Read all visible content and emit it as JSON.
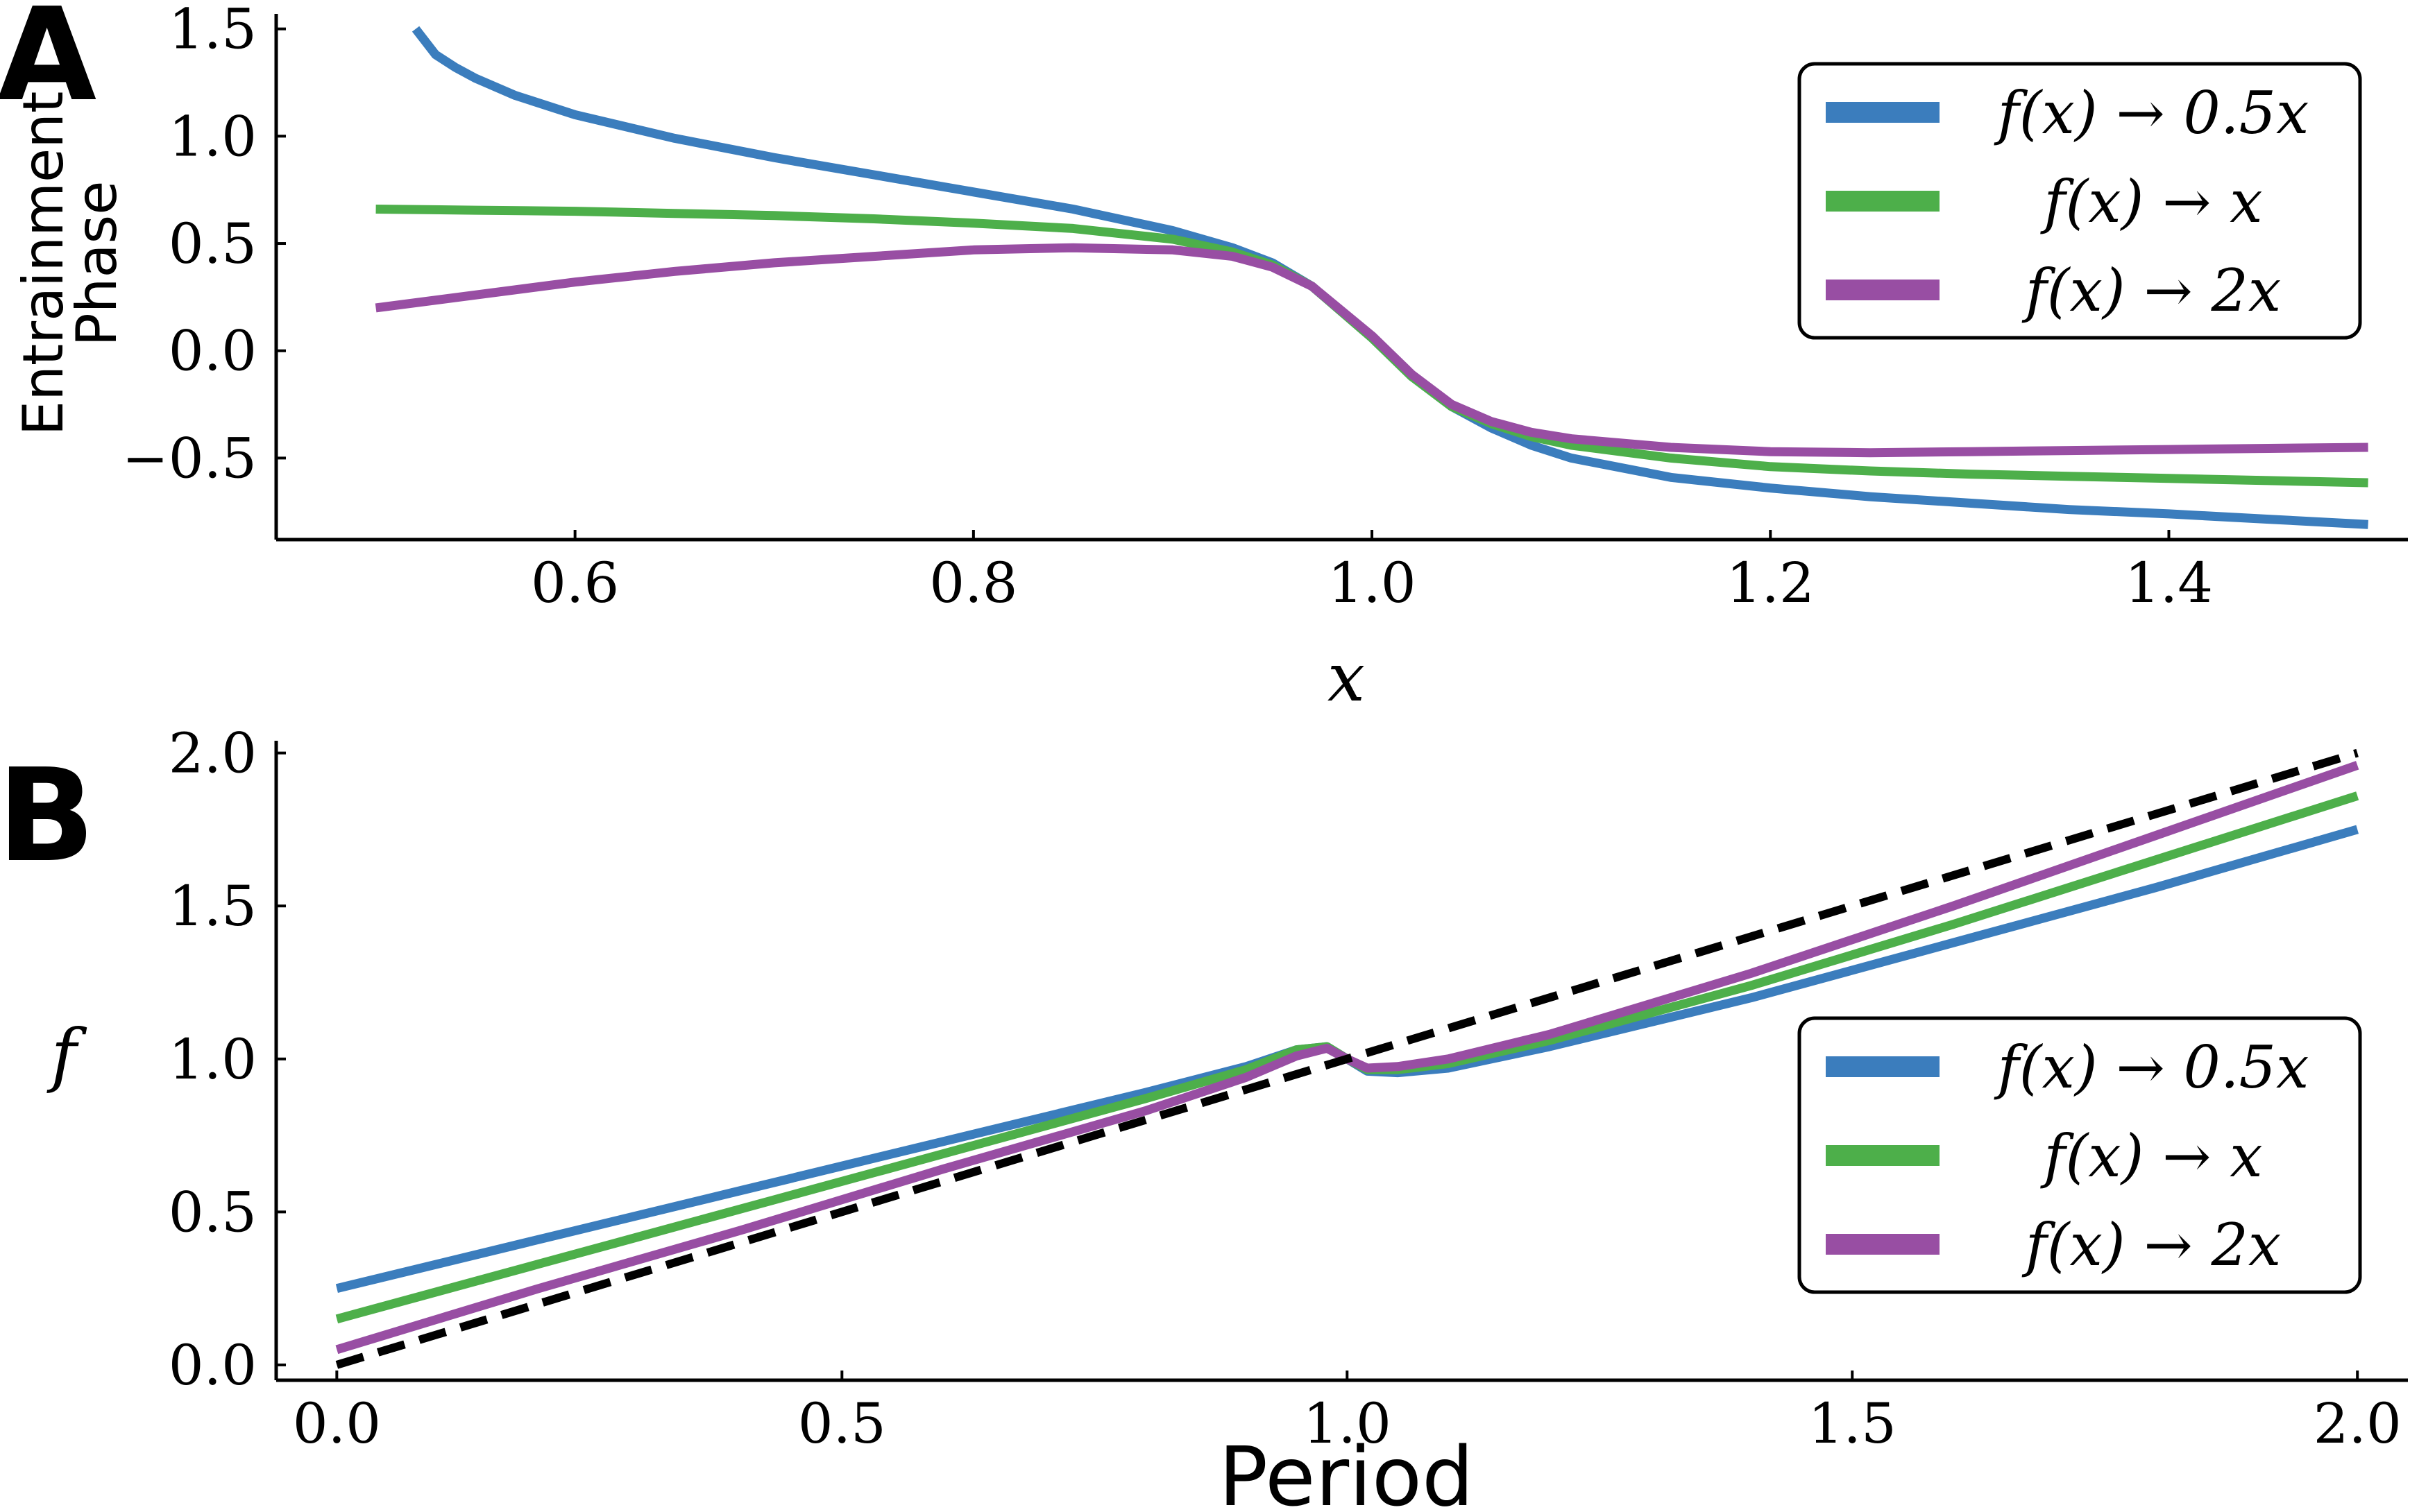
{
  "chart_data": [
    {
      "panel": "A",
      "type": "line",
      "xlabel": "x",
      "ylabel": [
        "Entrainment",
        "Phase"
      ],
      "xlim": [
        0.45,
        1.52
      ],
      "ylim": [
        -0.88,
        1.57
      ],
      "xticks": [
        0.6,
        0.8,
        1.0,
        1.2,
        1.4
      ],
      "xtick_labels": [
        "0.6",
        "0.8",
        "1.0",
        "1.2",
        "1.4"
      ],
      "yticks": [
        1.5,
        1.0,
        0.5,
        0.0,
        -0.5
      ],
      "ytick_labels": [
        "1.5",
        "1.0",
        "0.5",
        "0.0",
        "−0.5"
      ],
      "grid": false,
      "legend_position": "top-right",
      "series": [
        {
          "name": "f(x) → 0.5x",
          "color": "#3b7dbd",
          "x": [
            0.52,
            0.53,
            0.54,
            0.55,
            0.57,
            0.6,
            0.65,
            0.7,
            0.75,
            0.8,
            0.85,
            0.9,
            0.93,
            0.95,
            0.97,
            1.0,
            1.02,
            1.04,
            1.06,
            1.08,
            1.1,
            1.15,
            1.2,
            1.25,
            1.3,
            1.35,
            1.4,
            1.45,
            1.5
          ],
          "y": [
            1.5,
            1.38,
            1.32,
            1.27,
            1.19,
            1.1,
            0.99,
            0.9,
            0.82,
            0.74,
            0.66,
            0.56,
            0.48,
            0.41,
            0.3,
            0.06,
            -0.12,
            -0.26,
            -0.36,
            -0.44,
            -0.5,
            -0.59,
            -0.64,
            -0.68,
            -0.71,
            -0.74,
            -0.76,
            -0.785,
            -0.81
          ]
        },
        {
          "name": "f(x) → x",
          "color": "#4daf4a",
          "x": [
            0.5,
            0.55,
            0.6,
            0.65,
            0.7,
            0.75,
            0.8,
            0.85,
            0.9,
            0.93,
            0.95,
            0.97,
            1.0,
            1.02,
            1.04,
            1.06,
            1.08,
            1.1,
            1.15,
            1.2,
            1.25,
            1.3,
            1.35,
            1.4,
            1.45,
            1.5
          ],
          "y": [
            0.66,
            0.655,
            0.65,
            0.64,
            0.63,
            0.615,
            0.595,
            0.57,
            0.52,
            0.46,
            0.4,
            0.3,
            0.06,
            -0.12,
            -0.26,
            -0.34,
            -0.4,
            -0.44,
            -0.5,
            -0.54,
            -0.56,
            -0.575,
            -0.585,
            -0.595,
            -0.605,
            -0.615
          ]
        },
        {
          "name": "f(x) → 2x",
          "color": "#984ea3",
          "x": [
            0.5,
            0.55,
            0.6,
            0.65,
            0.7,
            0.75,
            0.8,
            0.85,
            0.9,
            0.93,
            0.95,
            0.97,
            1.0,
            1.02,
            1.04,
            1.06,
            1.08,
            1.1,
            1.15,
            1.2,
            1.25,
            1.3,
            1.35,
            1.4,
            1.45,
            1.5
          ],
          "y": [
            0.2,
            0.26,
            0.32,
            0.37,
            0.41,
            0.44,
            0.47,
            0.48,
            0.47,
            0.44,
            0.39,
            0.3,
            0.07,
            -0.11,
            -0.25,
            -0.33,
            -0.38,
            -0.41,
            -0.45,
            -0.47,
            -0.475,
            -0.47,
            -0.465,
            -0.46,
            -0.455,
            -0.45
          ]
        }
      ]
    },
    {
      "panel": "B",
      "type": "line",
      "xlabel": "Period",
      "ylabel": "f",
      "xlim": [
        -0.06,
        2.05
      ],
      "ylim": [
        -0.05,
        2.04
      ],
      "xticks": [
        0.0,
        0.5,
        1.0,
        1.5,
        2.0
      ],
      "xtick_labels": [
        "0.0",
        "0.5",
        "1.0",
        "1.5",
        "2.0"
      ],
      "yticks": [
        2.0,
        1.5,
        1.0,
        0.5,
        0.0
      ],
      "ytick_labels": [
        "2.0",
        "1.5",
        "1.0",
        "0.5",
        "0.0"
      ],
      "grid": false,
      "legend_position": "center-right",
      "series": [
        {
          "name": "f(x) → 0.5x",
          "color": "#3b7dbd",
          "x": [
            0.0,
            0.2,
            0.4,
            0.6,
            0.8,
            0.9,
            0.95,
            0.98,
            1.0,
            1.02,
            1.05,
            1.1,
            1.2,
            1.4,
            1.6,
            1.8,
            2.0
          ],
          "y": [
            0.25,
            0.41,
            0.57,
            0.73,
            0.89,
            0.975,
            1.03,
            1.04,
            1.0,
            0.96,
            0.955,
            0.97,
            1.04,
            1.2,
            1.38,
            1.56,
            1.75
          ]
        },
        {
          "name": "f(x) → x",
          "color": "#4daf4a",
          "x": [
            0.0,
            0.2,
            0.4,
            0.6,
            0.8,
            0.9,
            0.95,
            0.98,
            1.0,
            1.02,
            1.05,
            1.1,
            1.2,
            1.4,
            1.6,
            1.8,
            2.0
          ],
          "y": [
            0.15,
            0.33,
            0.51,
            0.69,
            0.87,
            0.965,
            1.03,
            1.04,
            1.0,
            0.965,
            0.965,
            0.985,
            1.06,
            1.24,
            1.44,
            1.65,
            1.86
          ]
        },
        {
          "name": "f(x) → 2x",
          "color": "#984ea3",
          "x": [
            0.0,
            0.2,
            0.4,
            0.6,
            0.8,
            0.9,
            0.95,
            0.98,
            1.0,
            1.02,
            1.05,
            1.1,
            1.2,
            1.4,
            1.6,
            1.8,
            2.0
          ],
          "y": [
            0.05,
            0.25,
            0.44,
            0.64,
            0.83,
            0.94,
            1.01,
            1.035,
            1.0,
            0.97,
            0.975,
            1.0,
            1.08,
            1.28,
            1.5,
            1.73,
            1.96
          ]
        },
        {
          "name": "",
          "color": "#000000",
          "dashed": true,
          "x": [
            0.0,
            2.0
          ],
          "y": [
            0.0,
            2.0
          ]
        }
      ]
    }
  ],
  "panels": {
    "a": {
      "letter": "A",
      "xlabel": "x",
      "ylabel_line1": "Entrainment",
      "ylabel_line2": "Phase"
    },
    "b": {
      "letter": "B",
      "xlabel": "Period",
      "ylabel": "f"
    }
  },
  "legend": {
    "entries": [
      "f(x) → 0.5x",
      "f(x) → x",
      "f(x) → 2x"
    ],
    "colors": [
      "#3b7dbd",
      "#4daf4a",
      "#984ea3"
    ]
  }
}
